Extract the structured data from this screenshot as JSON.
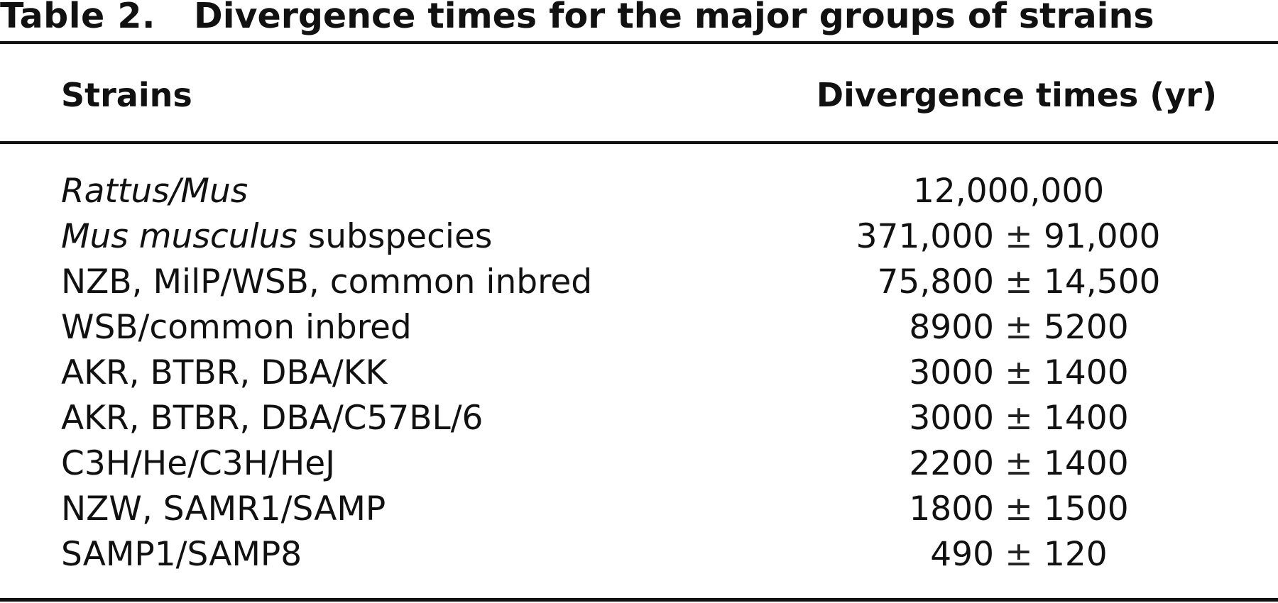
{
  "caption": {
    "label": "Table 2.",
    "title": "Divergence times for the major groups of strains"
  },
  "columns": {
    "strains": "Strains",
    "divergence": "Divergence times (yr)"
  },
  "rows": [
    {
      "strain_italic": "Rattus/Mus",
      "strain_rest": "",
      "value": "12,000,000",
      "pm": "",
      "error": ""
    },
    {
      "strain_italic": "Mus musculus",
      "strain_rest": " subspecies",
      "value": "371,000",
      "pm": "±",
      "error": "91,000"
    },
    {
      "strain_italic": "",
      "strain_rest": "NZB, MilP/WSB, common inbred",
      "value": "75,800",
      "pm": "±",
      "error": "14,500"
    },
    {
      "strain_italic": "",
      "strain_rest": "WSB/common inbred",
      "value": "8900",
      "pm": "±",
      "error": "5200"
    },
    {
      "strain_italic": "",
      "strain_rest": "AKR, BTBR, DBA/KK",
      "value": "3000",
      "pm": "±",
      "error": "1400"
    },
    {
      "strain_italic": "",
      "strain_rest": "AKR, BTBR, DBA/C57BL/6",
      "value": "3000",
      "pm": "±",
      "error": "1400"
    },
    {
      "strain_italic": "",
      "strain_rest": "C3H/He/C3H/HeJ",
      "value": "2200",
      "pm": "±",
      "error": "1400"
    },
    {
      "strain_italic": "",
      "strain_rest": "NZW, SAMR1/SAMP",
      "value": "1800",
      "pm": "±",
      "error": "1500"
    },
    {
      "strain_italic": "",
      "strain_rest": "SAMP1/SAMP8",
      "value": "490",
      "pm": "±",
      "error": "120"
    }
  ]
}
